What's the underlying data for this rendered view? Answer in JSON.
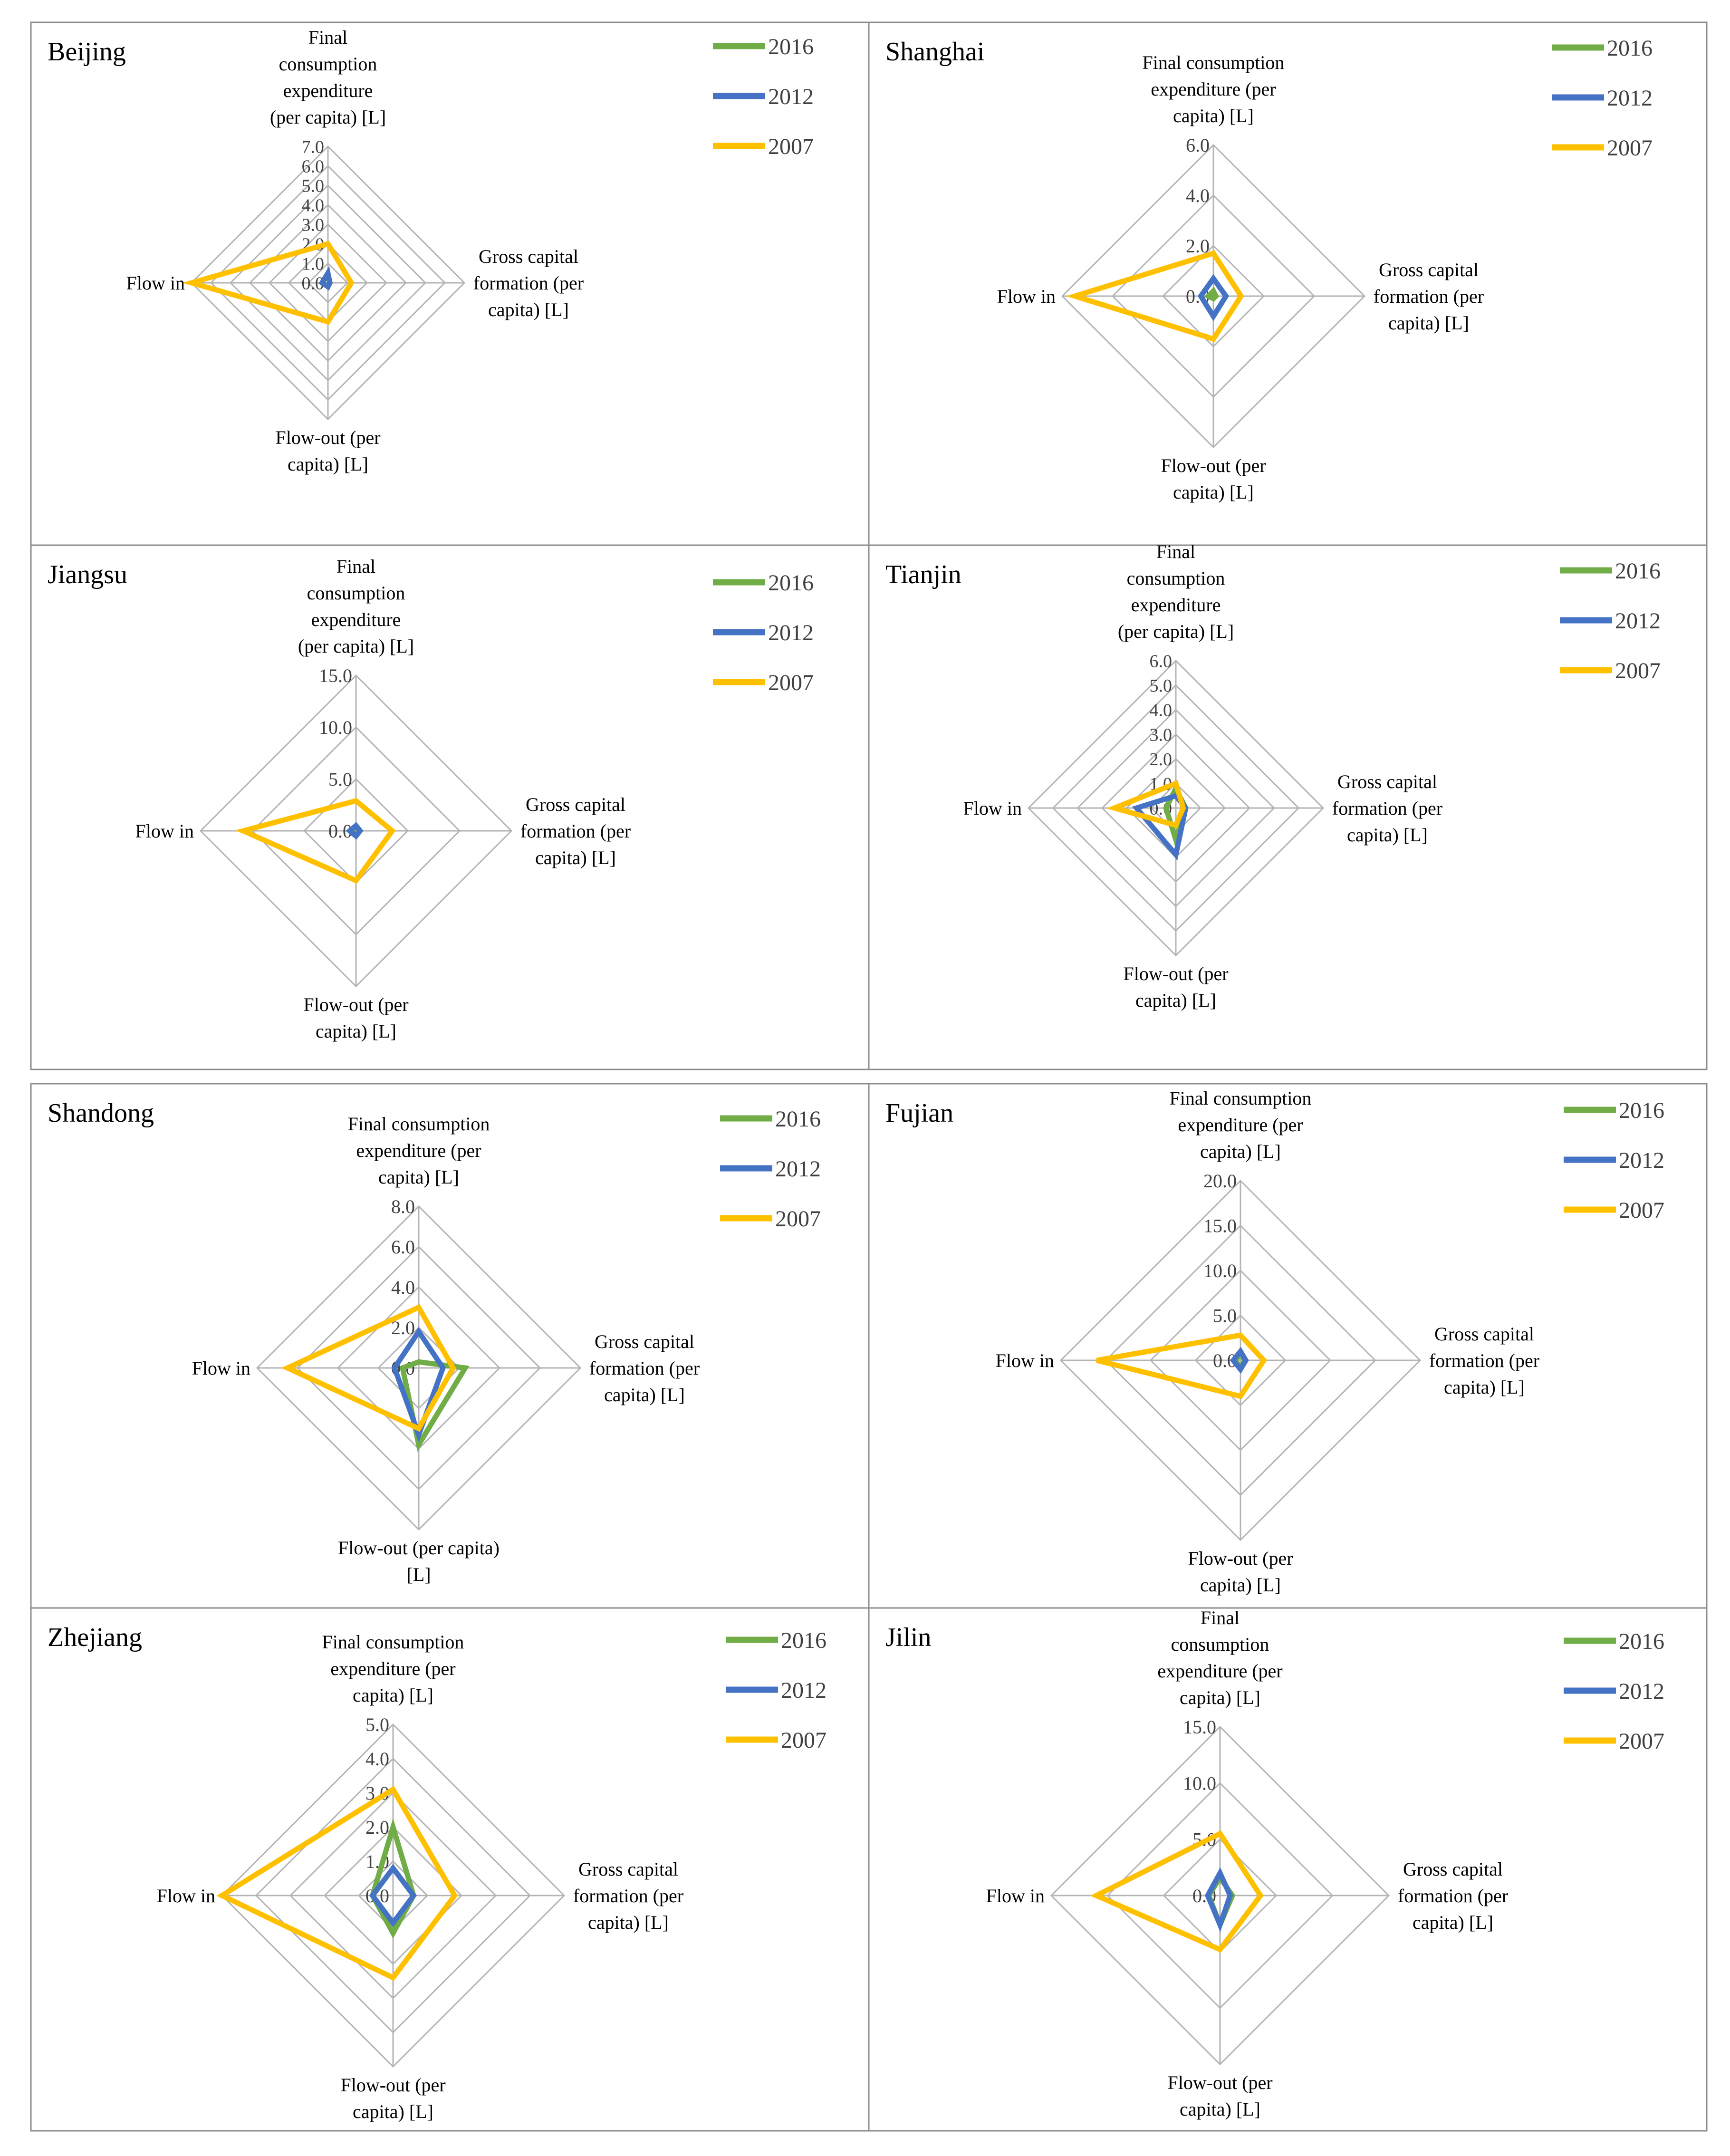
{
  "colors": {
    "2016": "#70AD47",
    "2012": "#4472C4",
    "2007": "#FFC000",
    "grid": "#B4B4B4",
    "frame": "#8C8C8C",
    "text": "#404040"
  },
  "legend_labels": [
    "2016",
    "2012",
    "2007"
  ],
  "chart_data": [
    {
      "type": "radar",
      "title": "Beijing",
      "axes": [
        "Final consumption expenditure (per capita) [L]",
        "Gross capital formation (per capita) [L]",
        "Flow-out (per capita) [L]",
        "Flow in"
      ],
      "axis_label_lines": [
        [
          "Final",
          "consumption",
          "expenditure",
          "(per capita) [L]"
        ],
        [
          "Gross capital",
          "formation (per",
          "capita) [L]"
        ],
        [
          "Flow-out (per",
          "capita) [L]"
        ],
        [
          "Flow in"
        ]
      ],
      "ticks": [
        "0.0",
        "1.0",
        "2.0",
        "3.0",
        "4.0",
        "5.0",
        "6.0",
        "7.0"
      ],
      "rmax": 7,
      "series": [
        {
          "name": "2016",
          "values": [
            0.4,
            0.1,
            0.2,
            0.3
          ]
        },
        {
          "name": "2012",
          "values": [
            0.5,
            0.1,
            0.2,
            0.3
          ]
        },
        {
          "name": "2007",
          "values": [
            2.0,
            1.2,
            2.0,
            7.0
          ]
        }
      ]
    },
    {
      "type": "radar",
      "title": "Shanghai",
      "axes": [
        "Final consumption expenditure (per capita) [L]",
        "Gross capital formation (per capita) [L]",
        "Flow-out (per capita) [L]",
        "Flow in"
      ],
      "axis_label_lines": [
        [
          "Final consumption",
          "expenditure (per",
          "capita) [L]"
        ],
        [
          "Gross capital",
          "formation (per",
          "capita) [L]"
        ],
        [
          "Flow-out (per",
          "capita) [L]"
        ],
        [
          "Flow in"
        ]
      ],
      "ticks": [
        "0.0",
        "2.0",
        "4.0",
        "6.0"
      ],
      "rmax": 6,
      "series": [
        {
          "name": "2016",
          "values": [
            0.2,
            0.1,
            0.1,
            0.2
          ]
        },
        {
          "name": "2012",
          "values": [
            0.7,
            0.5,
            0.8,
            0.5
          ]
        },
        {
          "name": "2007",
          "values": [
            1.7,
            1.1,
            1.7,
            5.5
          ]
        }
      ]
    },
    {
      "type": "radar",
      "title": "Jiangsu",
      "axes": [
        "Final consumption expenditure (per capita) [L]",
        "Gross capital formation (per capita) [L]",
        "Flow-out (per capita) [L]",
        "Flow in"
      ],
      "axis_label_lines": [
        [
          "Final",
          "consumption",
          "expenditure",
          "(per capita) [L]"
        ],
        [
          "Gross capital",
          "formation (per",
          "capita) [L]"
        ],
        [
          "Flow-out (per",
          "capita) [L]"
        ],
        [
          "Flow in"
        ]
      ],
      "ticks": [
        "0.0",
        "5.0",
        "10.0",
        "15.0"
      ],
      "rmax": 15,
      "series": [
        {
          "name": "2016",
          "values": [
            0.4,
            0.3,
            0.4,
            0.4
          ]
        },
        {
          "name": "2012",
          "values": [
            0.5,
            0.4,
            0.5,
            0.6
          ]
        },
        {
          "name": "2007",
          "values": [
            2.9,
            3.5,
            4.8,
            10.9
          ]
        }
      ]
    },
    {
      "type": "radar",
      "title": "Tianjin",
      "axes": [
        "Final consumption expenditure (per capita) [L]",
        "Gross capital formation (per capita) [L]",
        "Flow-out (per capita) [L]",
        "Flow in"
      ],
      "axis_label_lines": [
        [
          "Final",
          "consumption",
          "expenditure",
          "(per capita) [L]"
        ],
        [
          "Gross capital",
          "formation (per",
          "capita) [L]"
        ],
        [
          "Flow-out (per",
          "capita) [L]"
        ],
        [
          "Flow in"
        ]
      ],
      "ticks": [
        "0.0",
        "1.0",
        "2.0",
        "3.0",
        "4.0",
        "5.0",
        "6.0"
      ],
      "rmax": 6,
      "series": [
        {
          "name": "2016",
          "values": [
            0.8,
            0.4,
            1.3,
            0.4
          ]
        },
        {
          "name": "2012",
          "values": [
            0.5,
            0.4,
            1.9,
            1.6
          ]
        },
        {
          "name": "2007",
          "values": [
            1.0,
            0.3,
            0.7,
            2.5
          ]
        }
      ]
    },
    {
      "type": "radar",
      "title": "Shandong",
      "axes": [
        "Final consumption expenditure (per capita) [L]",
        "Gross capital formation (per capita) [L]",
        "Flow-out (per capita) [L]",
        "Flow in"
      ],
      "axis_label_lines": [
        [
          "Final consumption",
          "expenditure (per",
          "capita) [L]"
        ],
        [
          "Gross capital",
          "formation (per",
          "capita) [L]"
        ],
        [
          "Flow-out (per capita)",
          "[L]"
        ],
        [
          "Flow in"
        ]
      ],
      "ticks": [
        "0.0",
        "2.0",
        "4.0",
        "6.0",
        "8.0"
      ],
      "rmax": 8,
      "series": [
        {
          "name": "2016",
          "values": [
            0.3,
            2.3,
            3.8,
            0.8
          ]
        },
        {
          "name": "2012",
          "values": [
            1.8,
            1.2,
            3.3,
            1.2
          ]
        },
        {
          "name": "2007",
          "values": [
            3.0,
            1.7,
            3.0,
            6.5
          ]
        }
      ]
    },
    {
      "type": "radar",
      "title": "Fujian",
      "axes": [
        "Final consumption expenditure (per capita) [L]",
        "Gross capital formation (per capita) [L]",
        "Flow-out (per capita) [L]",
        "Flow in"
      ],
      "axis_label_lines": [
        [
          "Final consumption",
          "expenditure (per",
          "capita) [L]"
        ],
        [
          "Gross capital",
          "formation (per",
          "capita) [L]"
        ],
        [
          "Flow-out (per",
          "capita) [L]"
        ],
        [
          "Flow in"
        ]
      ],
      "ticks": [
        "0.0",
        "5.0",
        "10.0",
        "15.0",
        "20.0"
      ],
      "rmax": 20,
      "series": [
        {
          "name": "2016",
          "values": [
            0.7,
            0.5,
            0.8,
            0.6
          ]
        },
        {
          "name": "2012",
          "values": [
            1.0,
            0.6,
            1.0,
            0.8
          ]
        },
        {
          "name": "2007",
          "values": [
            2.8,
            2.6,
            4.0,
            16.0
          ]
        }
      ]
    },
    {
      "type": "radar",
      "title": "Zhejiang",
      "axes": [
        "Final consumption expenditure (per capita) [L]",
        "Gross capital formation (per capita) [L]",
        "Flow-out (per capita) [L]",
        "Flow in"
      ],
      "axis_label_lines": [
        [
          "Final consumption",
          "expenditure (per",
          "capita) [L]"
        ],
        [
          "Gross capital",
          "formation (per",
          "capita) [L]"
        ],
        [
          "Flow-out (per",
          "capita) [L]"
        ],
        [
          "Flow in"
        ]
      ],
      "ticks": [
        "0.0",
        "1.0",
        "2.0",
        "3.0",
        "4.0",
        "5.0"
      ],
      "rmax": 5,
      "series": [
        {
          "name": "2016",
          "values": [
            2.0,
            0.6,
            1.1,
            0.6
          ]
        },
        {
          "name": "2012",
          "values": [
            0.8,
            0.6,
            0.8,
            0.6
          ]
        },
        {
          "name": "2007",
          "values": [
            3.1,
            1.8,
            2.4,
            5.0
          ]
        }
      ]
    },
    {
      "type": "radar",
      "title": "Jilin",
      "axes": [
        "Final consumption expenditure (per capita) [L]",
        "Gross capital formation (per capita) [L]",
        "Flow-out (per capita) [L]",
        "Flow in"
      ],
      "axis_label_lines": [
        [
          "Final",
          "consumption",
          "expenditure (per",
          "capita) [L]"
        ],
        [
          "Gross capital",
          "formation (per",
          "capita) [L]"
        ],
        [
          "Flow-out (per",
          "capita) [L]"
        ],
        [
          "Flow in"
        ]
      ],
      "ticks": [
        "0.0",
        "5.0",
        "10.0",
        "15.0"
      ],
      "rmax": 15,
      "series": [
        {
          "name": "2016",
          "values": [
            1.6,
            1.1,
            2.6,
            1.0
          ]
        },
        {
          "name": "2012",
          "values": [
            2.0,
            0.9,
            2.6,
            1.1
          ]
        },
        {
          "name": "2007",
          "values": [
            5.5,
            3.6,
            4.8,
            11.0
          ]
        }
      ]
    }
  ]
}
